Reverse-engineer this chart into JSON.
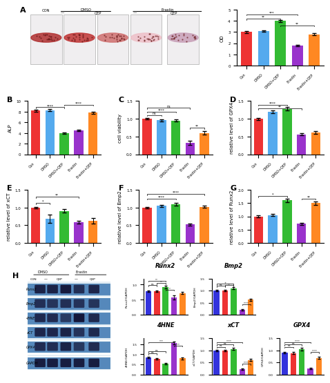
{
  "panel_A_bar": {
    "categories": [
      "Con",
      "DMSO",
      "DMSO+QEP",
      "Erastin",
      "Erastin+QEP"
    ],
    "values": [
      3.0,
      3.1,
      4.0,
      1.8,
      2.8
    ],
    "errors": [
      0.08,
      0.08,
      0.1,
      0.07,
      0.09
    ],
    "colors": [
      "#EE3333",
      "#55AAEE",
      "#33BB33",
      "#9933CC",
      "#FF8822"
    ],
    "ylabel": "OD",
    "ylim": [
      0,
      5
    ],
    "yticks": [
      0,
      1,
      2,
      3,
      4,
      5
    ]
  },
  "panel_B": {
    "categories": [
      "Con",
      "DMSO",
      "DMSO+QEP",
      "Erastin",
      "Erastin+QEP"
    ],
    "values": [
      8.2,
      8.3,
      4.0,
      4.5,
      7.8
    ],
    "errors": [
      0.15,
      0.15,
      0.1,
      0.12,
      0.18
    ],
    "colors": [
      "#EE3333",
      "#55AAEE",
      "#33BB33",
      "#9933CC",
      "#FF8822"
    ],
    "ylabel": "ALP",
    "ylim": [
      0,
      10
    ],
    "yticks": [
      0,
      2,
      4,
      6,
      8,
      10
    ]
  },
  "panel_C": {
    "categories": [
      "Con",
      "DMSO",
      "DMSO+QEP",
      "Erastin",
      "Erastin+QEP"
    ],
    "values": [
      1.0,
      0.96,
      0.95,
      0.32,
      0.6
    ],
    "errors": [
      0.02,
      0.03,
      0.03,
      0.06,
      0.05
    ],
    "colors": [
      "#EE3333",
      "#55AAEE",
      "#33BB33",
      "#9933CC",
      "#FF8822"
    ],
    "ylabel": "cell viability",
    "ylim": [
      0,
      1.5
    ],
    "yticks": [
      0.0,
      0.5,
      1.0,
      1.5
    ]
  },
  "panel_D": {
    "categories": [
      "Con",
      "DMSO",
      "DMSO+QEP",
      "Erastin",
      "Erastin+QEP"
    ],
    "values": [
      1.0,
      1.2,
      1.28,
      0.56,
      0.62
    ],
    "errors": [
      0.03,
      0.04,
      0.05,
      0.03,
      0.04
    ],
    "colors": [
      "#EE3333",
      "#55AAEE",
      "#33BB33",
      "#9933CC",
      "#FF8822"
    ],
    "ylabel": "relative level of GPX4",
    "ylim": [
      0,
      1.5
    ],
    "yticks": [
      0.0,
      0.5,
      1.0,
      1.5
    ]
  },
  "panel_E": {
    "categories": [
      "Con",
      "DMSO",
      "DMSO+QEP",
      "Erastin",
      "Erastin+QEP"
    ],
    "values": [
      1.0,
      0.68,
      0.9,
      0.58,
      0.62
    ],
    "errors": [
      0.02,
      0.12,
      0.05,
      0.04,
      0.08
    ],
    "colors": [
      "#EE3333",
      "#55AAEE",
      "#33BB33",
      "#9933CC",
      "#FF8822"
    ],
    "ylabel": "relative level of xCT",
    "ylim": [
      0,
      1.5
    ],
    "yticks": [
      0.0,
      0.5,
      1.0,
      1.5
    ]
  },
  "panel_F": {
    "categories": [
      "Con",
      "DMSO",
      "DMSO+QEP",
      "Erastin",
      "Erastin+QEP"
    ],
    "values": [
      1.0,
      1.05,
      1.1,
      0.52,
      1.02
    ],
    "errors": [
      0.02,
      0.03,
      0.04,
      0.03,
      0.03
    ],
    "colors": [
      "#EE3333",
      "#55AAEE",
      "#33BB33",
      "#9933CC",
      "#FF8822"
    ],
    "ylabel": "relative level of Bmp2",
    "ylim": [
      0,
      1.5
    ],
    "yticks": [
      0.0,
      0.5,
      1.0,
      1.5
    ]
  },
  "panel_G": {
    "categories": [
      "Con",
      "DMSO",
      "DMSO+QEP",
      "Erastin",
      "Erastin+QEP"
    ],
    "values": [
      1.0,
      1.05,
      1.6,
      0.72,
      1.5
    ],
    "errors": [
      0.03,
      0.04,
      0.07,
      0.05,
      0.06
    ],
    "colors": [
      "#EE3333",
      "#55AAEE",
      "#33BB33",
      "#9933CC",
      "#FF8822"
    ],
    "ylabel": "relative level of Runx2",
    "ylim": [
      0,
      2.0
    ],
    "yticks": [
      0.0,
      0.5,
      1.0,
      1.5,
      2.0
    ]
  },
  "panel_H_Runx2": {
    "values": [
      0.78,
      0.78,
      0.92,
      0.58,
      0.72
    ],
    "errors": [
      0.02,
      0.02,
      0.04,
      0.07,
      0.03
    ],
    "colors": [
      "#3333DD",
      "#EE3333",
      "#33BB33",
      "#9933CC",
      "#FF8822"
    ],
    "ylabel": "Runx2/GAPDH",
    "ylim": [
      0,
      1.2
    ],
    "yticks": [
      0.0,
      0.5,
      1.0
    ],
    "title": "Runx2"
  },
  "panel_H_Bmp2": {
    "values": [
      1.0,
      1.0,
      1.1,
      0.2,
      0.62
    ],
    "errors": [
      0.03,
      0.03,
      0.04,
      0.03,
      0.04
    ],
    "colors": [
      "#3333DD",
      "#EE3333",
      "#33BB33",
      "#9933CC",
      "#FF8822"
    ],
    "ylabel": "Bmp2/GAPDH",
    "ylim": [
      0,
      1.5
    ],
    "yticks": [
      0.0,
      0.5,
      1.0,
      1.5
    ],
    "title": "Bmp2"
  },
  "panel_H_4HNE": {
    "values": [
      0.85,
      0.78,
      0.52,
      1.55,
      0.8
    ],
    "errors": [
      0.03,
      0.04,
      0.03,
      0.07,
      0.05
    ],
    "colors": [
      "#3333DD",
      "#EE3333",
      "#33BB33",
      "#9933CC",
      "#FF8822"
    ],
    "ylabel": "4HNE/GAPDH",
    "ylim": [
      0,
      1.8
    ],
    "yticks": [
      0.0,
      0.5,
      1.0,
      1.5
    ],
    "title": "4HNE"
  },
  "panel_H_xCT": {
    "values": [
      1.0,
      1.0,
      1.05,
      0.22,
      0.6
    ],
    "errors": [
      0.03,
      0.03,
      0.04,
      0.03,
      0.04
    ],
    "colors": [
      "#3333DD",
      "#EE3333",
      "#33BB33",
      "#9933CC",
      "#FF8822"
    ],
    "ylabel": "xCT/GAPDH",
    "ylim": [
      0,
      1.5
    ],
    "yticks": [
      0.0,
      0.5,
      1.0,
      1.5
    ],
    "title": "xCT"
  },
  "panel_H_GPX4": {
    "values": [
      0.9,
      0.88,
      1.05,
      0.25,
      0.68
    ],
    "errors": [
      0.03,
      0.04,
      0.05,
      0.03,
      0.04
    ],
    "colors": [
      "#3333DD",
      "#EE3333",
      "#33BB33",
      "#9933CC",
      "#FF8822"
    ],
    "ylabel": "GPX4/GAPDH",
    "ylim": [
      0,
      1.5
    ],
    "yticks": [
      0.0,
      0.5,
      1.0,
      1.5
    ],
    "title": "GPX4"
  },
  "wb_bg_color": "#5588BB",
  "bar_width": 0.65,
  "background_color": "#FFFFFF",
  "label_fontsize": 5,
  "tick_fontsize": 4,
  "panel_label_fontsize": 7
}
